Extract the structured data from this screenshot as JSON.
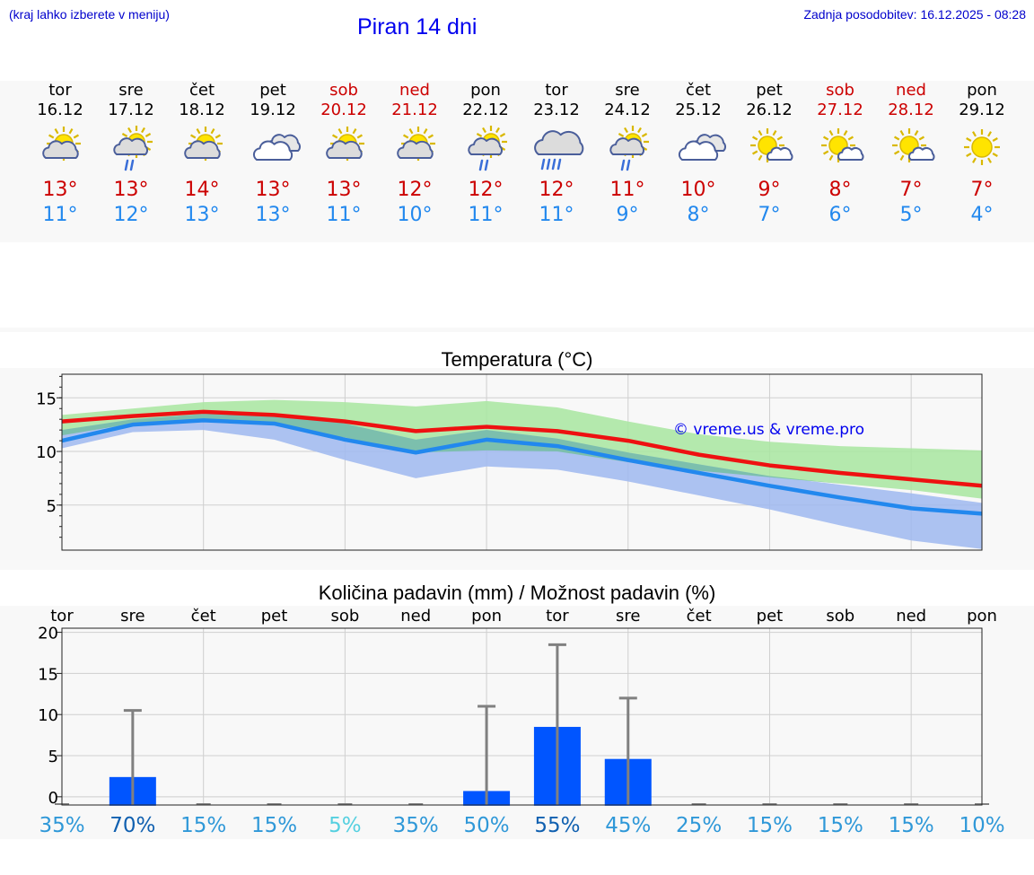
{
  "header": {
    "hint": "(kraj lahko izberete v meniju)",
    "title": "Piran 14 dni",
    "updated": "Zadnja posodobitev: 16.12.2025 - 08:28"
  },
  "days": [
    {
      "name": "tor",
      "date": "16.12",
      "icon": "partly-sunny-icon",
      "tmax": "13°",
      "tmin": "11°",
      "weekend": false
    },
    {
      "name": "sre",
      "date": "17.12",
      "icon": "sun-cloud-rain-icon",
      "tmax": "13°",
      "tmin": "12°",
      "weekend": false
    },
    {
      "name": "čet",
      "date": "18.12",
      "icon": "partly-sunny-icon",
      "tmax": "14°",
      "tmin": "13°",
      "weekend": false
    },
    {
      "name": "pet",
      "date": "19.12",
      "icon": "cloudy-icon",
      "tmax": "13°",
      "tmin": "13°",
      "weekend": false
    },
    {
      "name": "sob",
      "date": "20.12",
      "icon": "partly-sunny-icon",
      "tmax": "13°",
      "tmin": "11°",
      "weekend": true
    },
    {
      "name": "ned",
      "date": "21.12",
      "icon": "partly-sunny-icon",
      "tmax": "12°",
      "tmin": "10°",
      "weekend": true
    },
    {
      "name": "pon",
      "date": "22.12",
      "icon": "sun-cloud-rain-icon",
      "tmax": "12°",
      "tmin": "11°",
      "weekend": false
    },
    {
      "name": "tor",
      "date": "23.12",
      "icon": "cloud-heavy-rain-icon",
      "tmax": "12°",
      "tmin": "11°",
      "weekend": false
    },
    {
      "name": "sre",
      "date": "24.12",
      "icon": "sun-cloud-rain-icon",
      "tmax": "11°",
      "tmin": "9°",
      "weekend": false
    },
    {
      "name": "čet",
      "date": "25.12",
      "icon": "cloudy-icon",
      "tmax": "10°",
      "tmin": "8°",
      "weekend": false
    },
    {
      "name": "pet",
      "date": "26.12",
      "icon": "mostly-sunny-icon",
      "tmax": "9°",
      "tmin": "7°",
      "weekend": false
    },
    {
      "name": "sob",
      "date": "27.12",
      "icon": "mostly-sunny-icon",
      "tmax": "8°",
      "tmin": "6°",
      "weekend": true
    },
    {
      "name": "ned",
      "date": "28.12",
      "icon": "mostly-sunny-icon",
      "tmax": "7°",
      "tmin": "5°",
      "weekend": true
    },
    {
      "name": "pon",
      "date": "29.12",
      "icon": "sunny-icon",
      "tmax": "7°",
      "tmin": "4°",
      "weekend": false
    }
  ],
  "chart_data": [
    {
      "type": "line",
      "title": "Temperatura (°C)",
      "watermark": "© vreme.us & vreme.pro",
      "x": [
        0,
        1,
        2,
        3,
        4,
        5,
        6,
        7,
        8,
        9,
        10,
        11,
        12,
        13
      ],
      "ylim": [
        0.8,
        17.2
      ],
      "yticks": [
        5,
        10,
        15
      ],
      "series": [
        {
          "name": "max",
          "color": "#ee1111",
          "values": [
            12.8,
            13.3,
            13.7,
            13.4,
            12.8,
            11.9,
            12.3,
            11.9,
            11.0,
            9.7,
            8.7,
            8.0,
            7.4,
            6.8
          ]
        },
        {
          "name": "min",
          "color": "#2288ee",
          "values": [
            11.0,
            12.5,
            12.9,
            12.6,
            11.1,
            9.9,
            11.1,
            10.5,
            9.2,
            8.0,
            6.8,
            5.7,
            4.7,
            4.2
          ]
        }
      ],
      "bands": [
        {
          "name": "max-range",
          "color": "#a8e6a0",
          "upper": [
            13.4,
            14.0,
            14.6,
            14.8,
            14.6,
            14.2,
            14.7,
            14.1,
            12.8,
            11.6,
            10.9,
            10.5,
            10.3,
            10.1
          ],
          "lower": [
            11.5,
            12.6,
            13.0,
            12.5,
            11.3,
            9.9,
            10.1,
            10.0,
            9.0,
            8.2,
            7.6,
            7.0,
            6.4,
            5.6
          ]
        },
        {
          "name": "min-range",
          "color": "#9fb8f0",
          "upper": [
            12.0,
            13.0,
            13.5,
            13.5,
            12.6,
            11.1,
            12.0,
            11.2,
            9.9,
            8.8,
            7.7,
            6.9,
            6.1,
            5.2
          ],
          "lower": [
            10.3,
            11.8,
            12.0,
            11.1,
            9.2,
            7.5,
            8.6,
            8.3,
            7.2,
            5.9,
            4.6,
            3.1,
            1.7,
            0.9
          ]
        }
      ]
    },
    {
      "type": "bar",
      "title": "Količina padavin (mm) / Možnost padavin (%)",
      "categories": [
        "tor",
        "sre",
        "čet",
        "pet",
        "sob",
        "ned",
        "pon",
        "tor",
        "sre",
        "čet",
        "pet",
        "sob",
        "ned",
        "pon"
      ],
      "values": [
        0,
        2.4,
        0,
        0,
        0,
        0,
        0.7,
        8.5,
        4.6,
        0,
        0,
        0,
        0,
        0
      ],
      "max_whisker": [
        0,
        10.5,
        0,
        0,
        0,
        0,
        11.0,
        18.5,
        12.0,
        0,
        0,
        0,
        0,
        0
      ],
      "ylim": [
        -1,
        20.5
      ],
      "yticks": [
        0,
        5,
        10,
        15,
        20
      ],
      "bar_color": "#0055ff",
      "probability": [
        "35%",
        "70%",
        "15%",
        "15%",
        "5%",
        "35%",
        "50%",
        "55%",
        "45%",
        "25%",
        "15%",
        "15%",
        "15%",
        "10%"
      ],
      "probability_colors": [
        "#2f98d8",
        "#1060b0",
        "#2f98d8",
        "#2f98d8",
        "#55d0e0",
        "#2f98d8",
        "#2f98d8",
        "#1060b0",
        "#2f98d8",
        "#2f98d8",
        "#2f98d8",
        "#2f98d8",
        "#2f98d8",
        "#2f98d8"
      ]
    }
  ]
}
